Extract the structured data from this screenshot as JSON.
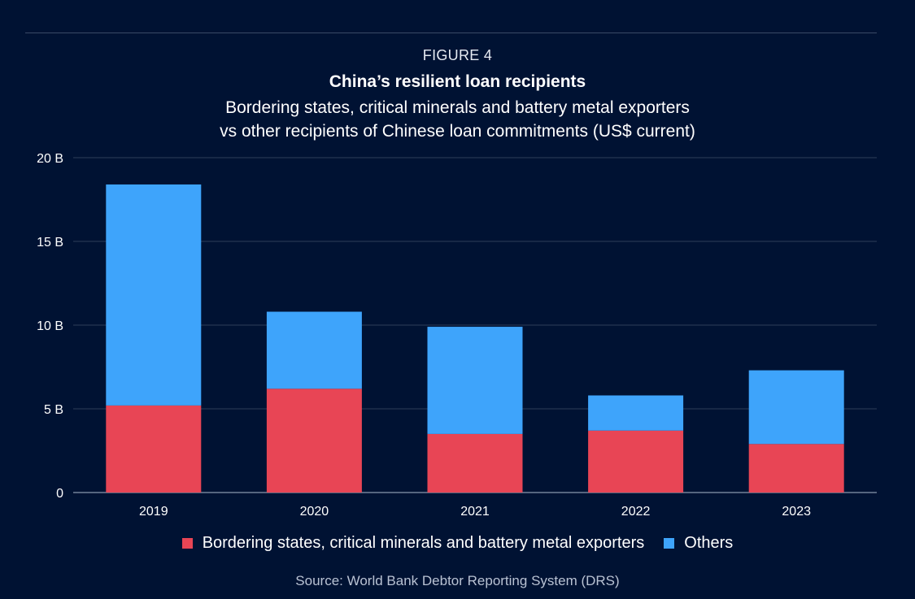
{
  "header": {
    "figure_label": "FIGURE 4",
    "title": "China’s resilient loan recipients",
    "subtitle_line1": "Bordering states, critical minerals and battery metal exporters",
    "subtitle_line2": "vs other recipients of Chinese loan commitments (US$ current)"
  },
  "footer": {
    "source": "Source: World Bank Debtor Reporting System (DRS)"
  },
  "colors": {
    "background": "#001233",
    "series_bordering": "#e84555",
    "series_others": "#3ea4fb",
    "gridline": "#2e3d5a",
    "axis_text": "#ffffff"
  },
  "chart_data": {
    "type": "bar",
    "stacked": true,
    "categories": [
      "2019",
      "2020",
      "2021",
      "2022",
      "2023"
    ],
    "series": [
      {
        "name": "Bordering states, critical minerals and battery metal exporters",
        "values": [
          5.2,
          6.2,
          3.5,
          3.7,
          2.9
        ]
      },
      {
        "name": "Others",
        "values": [
          13.2,
          4.6,
          6.4,
          2.1,
          4.4
        ]
      }
    ],
    "yticks": [
      0,
      5,
      10,
      15,
      20
    ],
    "ytick_labels": [
      "0",
      "5 B",
      "10 B",
      "15 B",
      "20 B"
    ],
    "ylim": [
      0,
      20
    ],
    "grid": true,
    "legend_position": "bottom"
  }
}
